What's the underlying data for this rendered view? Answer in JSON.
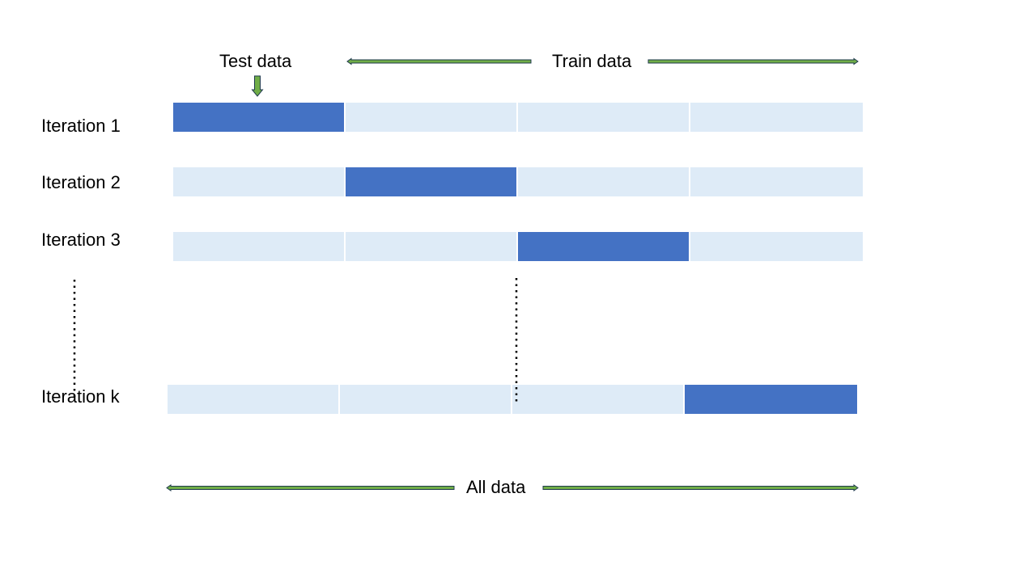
{
  "labels": {
    "test_data": "Test data",
    "train_data": "Train data",
    "all_data": "All data"
  },
  "iterations": [
    {
      "label": "Iteration 1",
      "test_index": 0
    },
    {
      "label": "Iteration 2",
      "test_index": 1
    },
    {
      "label": "Iteration 3",
      "test_index": 2
    },
    {
      "label": "Iteration k",
      "test_index": 3
    }
  ],
  "segments_per_row": 4,
  "colors": {
    "test": "#4472c4",
    "train": "#deebf7",
    "arrow_fill": "#70ad47",
    "arrow_stroke": "#1f3a4d"
  },
  "icons": {
    "test_pointer": "down-arrow-icon",
    "range_arrows": "double-headed-arrow-icon",
    "ellipsis": "vertical-dotted-line"
  }
}
